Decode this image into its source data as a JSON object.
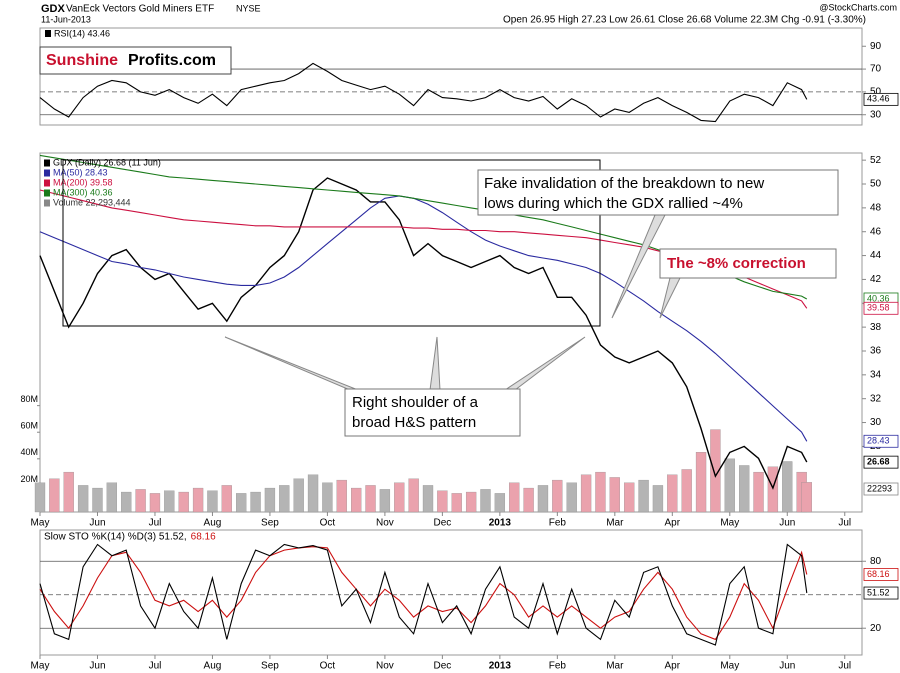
{
  "header": {
    "symbol": "GDX",
    "name": "VanEck Vectors Gold Miners ETF",
    "exchange": "NYSE",
    "date": "11-Jun-2013",
    "quote": "Open 26.95 High 27.23 Low 26.61 Close 26.68 Volume 22.3M Chg -0.91 (-3.30%)",
    "source": "@StockCharts.com"
  },
  "watermark": [
    "Sunshine",
    "Profits.com"
  ],
  "annotations": [
    {
      "lines": [
        "Fake invalidation of the breakdown to new",
        "lows during which the GDX rallied ~4%"
      ]
    },
    {
      "lines": [
        "The ~8% correction"
      ]
    },
    {
      "lines": [
        "Right shoulder of a",
        "broad H&S pattern"
      ]
    }
  ],
  "chart_data": [
    {
      "type": "line",
      "title": "RSI(14) 43.46",
      "x": [
        0,
        0.25,
        0.5,
        0.75,
        1,
        1.25,
        1.5,
        1.75,
        2,
        2.25,
        2.5,
        2.75,
        3,
        3.25,
        3.5,
        3.75,
        4,
        4.25,
        4.5,
        4.75,
        5,
        5.25,
        5.5,
        5.75,
        6,
        6.25,
        6.5,
        6.75,
        7,
        7.25,
        7.5,
        7.75,
        8,
        8.25,
        8.5,
        8.75,
        9,
        9.25,
        9.5,
        9.75,
        10,
        10.25,
        10.5,
        10.75,
        11,
        11.25,
        11.5,
        11.75,
        12,
        12.25,
        12.5,
        12.75,
        13,
        13.25,
        13.34
      ],
      "xlim": [
        0,
        14.3
      ],
      "series": [
        {
          "color": "#000000",
          "values": [
            45,
            35,
            28,
            45,
            55,
            60,
            58,
            50,
            47,
            52,
            45,
            40,
            48,
            38,
            52,
            55,
            58,
            60,
            66,
            75,
            68,
            60,
            56,
            52,
            55,
            48,
            38,
            52,
            45,
            44,
            42,
            45,
            52,
            45,
            42,
            46,
            35,
            44,
            38,
            28,
            35,
            32,
            40,
            45,
            38,
            32,
            25,
            24,
            42,
            48,
            45,
            38,
            58,
            52,
            43.46
          ]
        }
      ],
      "ylim": [
        21,
        106
      ],
      "yticks": [
        30,
        50,
        70,
        90
      ],
      "ref_lines": [
        {
          "value": 70,
          "dashed": false
        },
        {
          "value": 50,
          "dashed": true
        },
        {
          "value": 30,
          "dashed": false
        }
      ],
      "badges": [
        {
          "value": 43.46,
          "color": "#000000"
        }
      ]
    },
    {
      "type": "line",
      "x": [
        0,
        0.25,
        0.5,
        0.75,
        1,
        1.25,
        1.5,
        1.75,
        2,
        2.25,
        2.5,
        2.75,
        3,
        3.25,
        3.5,
        3.75,
        4,
        4.25,
        4.5,
        4.75,
        5,
        5.25,
        5.5,
        5.75,
        6,
        6.25,
        6.5,
        6.75,
        7,
        7.25,
        7.5,
        7.75,
        8,
        8.25,
        8.5,
        8.75,
        9,
        9.25,
        9.5,
        9.75,
        10,
        10.25,
        10.5,
        10.75,
        11,
        11.25,
        11.5,
        11.75,
        12,
        12.25,
        12.5,
        12.75,
        13,
        13.25,
        13.34
      ],
      "xlim": [
        0,
        14.3
      ],
      "xticks": [
        {
          "value": 0,
          "label": "May"
        },
        {
          "value": 1,
          "label": "Jun"
        },
        {
          "value": 2,
          "label": "Jul"
        },
        {
          "value": 3,
          "label": "Aug"
        },
        {
          "value": 4,
          "label": "Sep"
        },
        {
          "value": 5,
          "label": "Oct"
        },
        {
          "value": 6,
          "label": "Nov"
        },
        {
          "value": 7,
          "label": "Dec"
        },
        {
          "value": 8,
          "label": "2013",
          "bold": true
        },
        {
          "value": 9,
          "label": "Feb"
        },
        {
          "value": 10,
          "label": "Mar"
        },
        {
          "value": 11,
          "label": "Apr"
        },
        {
          "value": 12,
          "label": "May"
        },
        {
          "value": 13,
          "label": "Jun"
        },
        {
          "value": 14,
          "label": "Jul"
        }
      ],
      "series": [
        {
          "name": "GDX (Daily) 26.68 (11 Jun)",
          "color": "#000000",
          "values": [
            44,
            41,
            38,
            40,
            42.5,
            44,
            44.5,
            43,
            42,
            42.5,
            41,
            39.5,
            40,
            38.5,
            40.5,
            41.5,
            43,
            44,
            46,
            49.5,
            50.5,
            50,
            49.5,
            48.5,
            48.5,
            47,
            44,
            45,
            44,
            43.5,
            43,
            43.5,
            44,
            43,
            42.5,
            43,
            40.5,
            40.5,
            39,
            36.5,
            35.5,
            35,
            35.5,
            36,
            35,
            33,
            29.5,
            25.5,
            27.5,
            28,
            27,
            24.5,
            28,
            27.5,
            26.68
          ]
        },
        {
          "name": "MA(50) 28.43",
          "color": "#2a2aa0",
          "values": [
            46,
            45.5,
            45,
            44.5,
            44,
            43.5,
            43.3,
            43,
            42.8,
            42.5,
            42.2,
            42,
            41.8,
            41.6,
            41.5,
            41.5,
            41.7,
            42.2,
            43,
            44,
            45,
            46,
            47,
            48,
            48.8,
            49,
            48.8,
            48.3,
            47.6,
            46.8,
            46,
            45.3,
            44.8,
            44.4,
            44,
            43.8,
            43.6,
            43.3,
            43,
            42.5,
            41.8,
            41,
            40.2,
            39.3,
            38.5,
            37.7,
            36.8,
            35.8,
            34.7,
            33.6,
            32.5,
            31.4,
            30.3,
            29.2,
            28.43
          ]
        },
        {
          "name": "MA(200) 39.58",
          "color": "#cc1040",
          "values": [
            49.5,
            49.2,
            48.9,
            48.6,
            48.3,
            48,
            47.8,
            47.6,
            47.4,
            47.2,
            47,
            46.9,
            46.8,
            46.7,
            46.6,
            46.5,
            46.5,
            46.4,
            46.4,
            46.4,
            46.4,
            46.4,
            46.4,
            46.4,
            46.4,
            46.4,
            46.3,
            46.3,
            46.2,
            46.2,
            46.1,
            46.1,
            46,
            46,
            45.9,
            45.8,
            45.7,
            45.6,
            45.5,
            45.3,
            45.1,
            44.9,
            44.7,
            44.4,
            44.1,
            43.8,
            43.4,
            43,
            42.6,
            42.2,
            41.7,
            41.2,
            40.7,
            40.2,
            39.58
          ]
        },
        {
          "name": "MA(300) 40.36",
          "color": "#1a7a1a",
          "values": [
            52.4,
            52.2,
            52,
            51.8,
            51.6,
            51.4,
            51.2,
            51,
            50.8,
            50.6,
            50.5,
            50.4,
            50.3,
            50.2,
            50.1,
            50,
            49.9,
            49.8,
            49.7,
            49.6,
            49.5,
            49.4,
            49.3,
            49.2,
            49.1,
            49,
            48.8,
            48.6,
            48.4,
            48.2,
            48,
            47.8,
            47.6,
            47.4,
            47.2,
            47,
            46.7,
            46.4,
            46.1,
            45.8,
            45.5,
            45.2,
            44.9,
            44.5,
            44.1,
            43.7,
            43.3,
            42.8,
            42.3,
            41.8,
            41.4,
            41,
            40.8,
            40.6,
            40.36
          ]
        },
        {
          "name": "Volume 22,293,444",
          "type": "bar",
          "axis": "y2",
          "color": "#b4b4b4",
          "down_color": "#eaa2ad",
          "values": [
            22,
            25,
            30,
            20,
            18,
            22,
            15,
            17,
            14,
            16,
            15,
            18,
            16,
            20,
            14,
            15,
            18,
            20,
            25,
            28,
            22,
            24,
            18,
            20,
            17,
            22,
            25,
            20,
            16,
            14,
            15,
            17,
            14,
            22,
            18,
            20,
            24,
            22,
            28,
            30,
            26,
            22,
            24,
            20,
            28,
            32,
            45,
            62,
            40,
            35,
            30,
            34,
            38,
            30,
            22.3
          ]
        }
      ],
      "ylim": [
        22.5,
        52.6
      ],
      "yticks": [
        28,
        30,
        32,
        34,
        36,
        38,
        40,
        42,
        44,
        46,
        48,
        50,
        52
      ],
      "y2lim": [
        0,
        270
      ],
      "y2ticks": [
        {
          "value": 20,
          "label": "20M"
        },
        {
          "value": 40,
          "label": "40M"
        },
        {
          "value": 60,
          "label": "60M"
        },
        {
          "value": 80,
          "label": "80M"
        }
      ],
      "badges": [
        {
          "value": 40.36,
          "color": "#1a7a1a"
        },
        {
          "value": 39.58,
          "color": "#cc1040"
        },
        {
          "value": 28.43,
          "color": "#2a2aa0"
        },
        {
          "value": 26.68,
          "color": "#000000"
        }
      ],
      "volume_label": "22293"
    },
    {
      "type": "line",
      "title": "Slow STO %K(14) %D(3) 51.52,",
      "title_note": "68.16",
      "x": [
        0,
        0.25,
        0.5,
        0.75,
        1,
        1.25,
        1.5,
        1.75,
        2,
        2.25,
        2.5,
        2.75,
        3,
        3.25,
        3.5,
        3.75,
        4,
        4.25,
        4.5,
        4.75,
        5,
        5.25,
        5.5,
        5.75,
        6,
        6.25,
        6.5,
        6.75,
        7,
        7.25,
        7.5,
        7.75,
        8,
        8.25,
        8.5,
        8.75,
        9,
        9.25,
        9.5,
        9.75,
        10,
        10.25,
        10.5,
        10.75,
        11,
        11.25,
        11.5,
        11.75,
        12,
        12.25,
        12.5,
        12.75,
        13,
        13.25,
        13.34
      ],
      "xlim": [
        0,
        14.3
      ],
      "xticks": [
        {
          "value": 0,
          "label": "May"
        },
        {
          "value": 1,
          "label": "Jun"
        },
        {
          "value": 2,
          "label": "Jul"
        },
        {
          "value": 3,
          "label": "Aug"
        },
        {
          "value": 4,
          "label": "Sep"
        },
        {
          "value": 5,
          "label": "Oct"
        },
        {
          "value": 6,
          "label": "Nov"
        },
        {
          "value": 7,
          "label": "Dec"
        },
        {
          "value": 8,
          "label": "2013",
          "bold": true
        },
        {
          "value": 9,
          "label": "Feb"
        },
        {
          "value": 10,
          "label": "Mar"
        },
        {
          "value": 11,
          "label": "Apr"
        },
        {
          "value": 12,
          "label": "May"
        },
        {
          "value": 13,
          "label": "Jun"
        },
        {
          "value": 14,
          "label": "Jul"
        }
      ],
      "series": [
        {
          "color": "#cc1010",
          "values": [
            55,
            35,
            20,
            40,
            65,
            85,
            88,
            70,
            45,
            40,
            45,
            35,
            45,
            30,
            45,
            70,
            85,
            90,
            92,
            93,
            92,
            70,
            55,
            40,
            55,
            45,
            30,
            40,
            35,
            38,
            25,
            40,
            60,
            50,
            30,
            40,
            30,
            40,
            30,
            20,
            30,
            35,
            55,
            70,
            55,
            30,
            15,
            10,
            30,
            60,
            45,
            20,
            55,
            88,
            68.16
          ]
        },
        {
          "color": "#000000",
          "values": [
            60,
            15,
            10,
            75,
            95,
            85,
            90,
            40,
            20,
            60,
            35,
            20,
            65,
            10,
            60,
            90,
            85,
            95,
            92,
            94,
            90,
            40,
            55,
            25,
            70,
            30,
            15,
            60,
            25,
            40,
            15,
            55,
            75,
            30,
            20,
            60,
            15,
            55,
            20,
            10,
            45,
            30,
            70,
            75,
            40,
            15,
            10,
            5,
            60,
            75,
            20,
            15,
            95,
            85,
            51.52
          ]
        }
      ],
      "ylim": [
        -4,
        108
      ],
      "yticks": [
        20,
        80
      ],
      "ref_lines": [
        {
          "value": 80,
          "dashed": false
        },
        {
          "value": 50,
          "dashed": true
        },
        {
          "value": 20,
          "dashed": false
        }
      ],
      "badges": [
        {
          "value": 68.16,
          "color": "#cc1010"
        },
        {
          "value": 51.52,
          "color": "#000000"
        }
      ]
    }
  ]
}
